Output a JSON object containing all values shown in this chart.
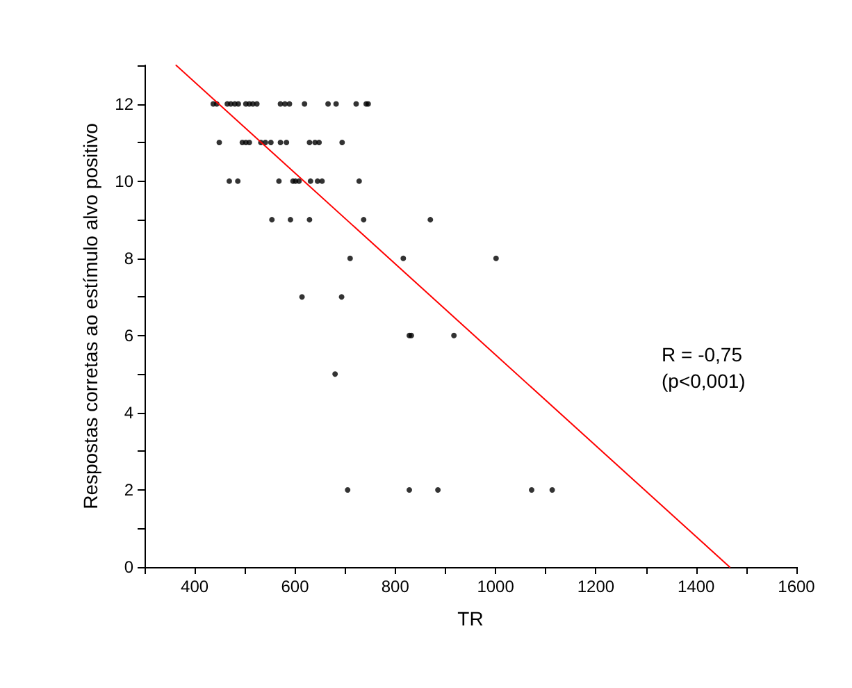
{
  "chart_data": {
    "type": "scatter",
    "xlabel": "TR",
    "ylabel": "Respostas corretas ao estímulo alvo positivo",
    "xlim": [
      300,
      1600
    ],
    "xticks": [
      400,
      600,
      800,
      1000,
      1200,
      1400,
      1600
    ],
    "ylim": [
      0,
      13
    ],
    "yticks": [
      0,
      2,
      4,
      6,
      8,
      10,
      12
    ],
    "grid": false,
    "marker": "circle",
    "annotations": [
      "R = -0,75",
      "(p<0,001)"
    ],
    "series": [
      {
        "color": "#000000",
        "x": [
          437,
          444,
          465,
          472,
          480,
          487,
          502,
          509,
          516,
          524,
          571,
          580,
          589,
          619,
          666,
          682,
          722,
          742,
          746,
          449,
          495,
          502,
          509,
          532,
          541,
          552,
          571,
          583,
          629,
          640,
          648,
          694,
          469,
          486,
          568,
          596,
          601,
          608,
          631,
          645,
          654,
          728,
          554,
          591,
          629,
          737,
          870,
          710,
          816,
          1001,
          614,
          693,
          828,
          832,
          917,
          680,
          705,
          828,
          885,
          1072,
          1113
        ],
        "values": [
          12,
          12,
          12,
          12,
          12,
          12,
          12,
          12,
          12,
          12,
          12,
          12,
          12,
          12,
          12,
          12,
          12,
          12,
          12,
          11,
          11,
          11,
          11,
          11,
          11,
          11,
          11,
          11,
          11,
          11,
          11,
          11,
          10,
          10,
          10,
          10,
          10,
          10,
          10,
          10,
          10,
          10,
          9,
          9,
          9,
          9,
          9,
          8,
          8,
          8,
          7,
          7,
          6,
          6,
          6,
          5,
          2,
          2,
          2,
          2,
          2
        ]
      },
      {
        "type": "line",
        "color": "#ff0000",
        "marker": "none",
        "line_style": "solid",
        "x": [
          363,
          1467
        ],
        "values": [
          13,
          0
        ]
      }
    ]
  }
}
